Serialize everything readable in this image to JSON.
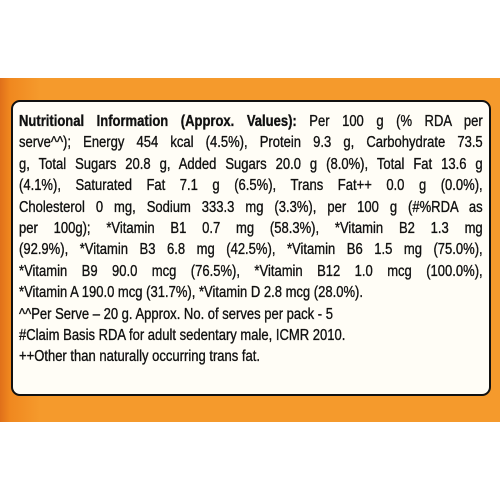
{
  "panel": {
    "heading": "Nutritional Information (Approx. Values):",
    "lines": [
      "Per 100 g (% RDA per",
      "serve^^); Energy 454 kcal (4.5%), Protein 9.3 g, Carbohydrate 73.5",
      "g, Total Sugars 20.8 g, Added Sugars 20.0 g (8.0%), Total Fat 13.6 g",
      "(4.1%), Saturated Fat 7.1 g (6.5%), Trans Fat++ 0.0 g (0.0%),",
      "Cholesterol 0 mg, Sodium 333.3 mg (3.3%), per 100 g (#%RDA as",
      "per 100g); *Vitamin B1 0.7 mg (58.3%), *Vitamin B2 1.3 mg",
      "(92.9%), *Vitamin B3 6.8 mg (42.5%), *Vitamin B6 1.5 mg (75.0%),",
      "*Vitamin B9 90.0 mcg (76.5%), *Vitamin B12 1.0 mcg (100.0%),",
      "*Vitamin A 190.0 mcg (31.7%), *Vitamin D 2.8 mcg (28.0%)."
    ],
    "footnotes": [
      "^^Per Serve – 20 g. Approx. No. of serves per pack - 5",
      "#Claim Basis RDA for adult sedentary male, ICMR 2010.",
      "++Other than naturally occurring trans fat."
    ]
  }
}
